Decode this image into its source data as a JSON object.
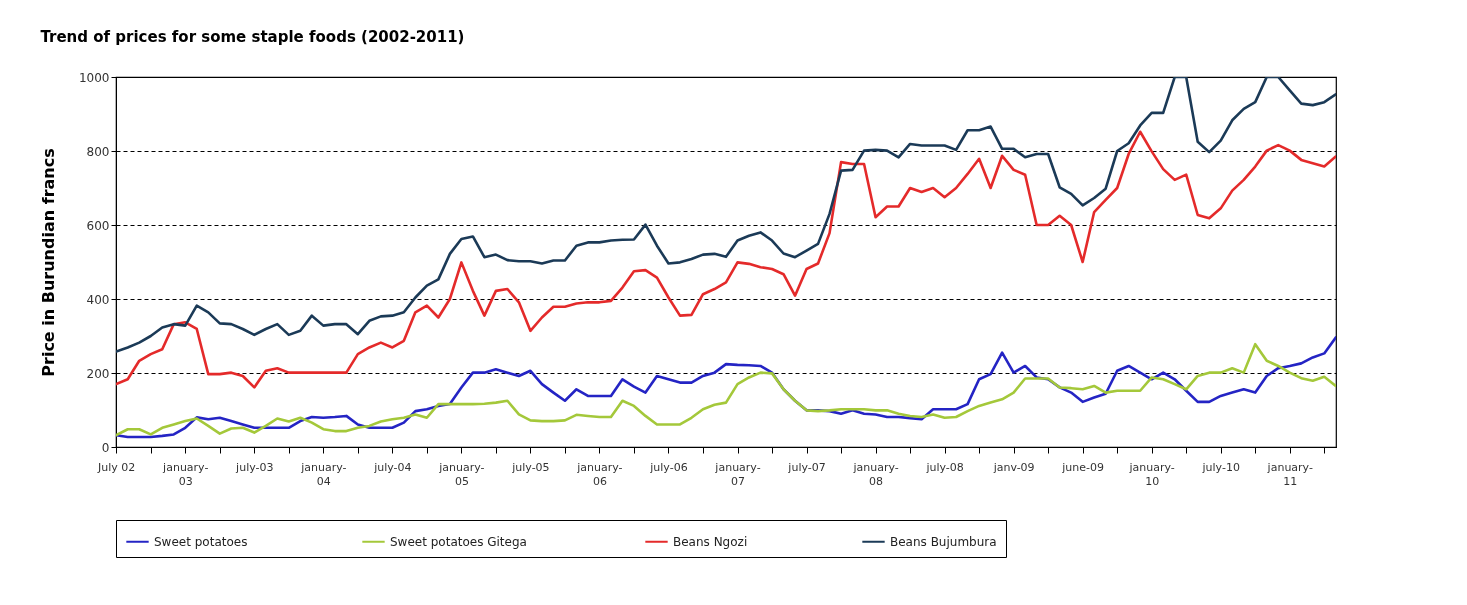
{
  "chart_data": {
    "type": "line",
    "title": "Trend of prices for some staple foods (2002-2011)",
    "ylabel": "Price in Burundian francs",
    "categories": [
      "July 02",
      null,
      null,
      null,
      null,
      null,
      "january-03",
      null,
      null,
      null,
      null,
      null,
      "july-03",
      null,
      null,
      null,
      null,
      null,
      "january-04",
      null,
      null,
      null,
      null,
      null,
      "july-04",
      null,
      null,
      null,
      null,
      null,
      "january-05",
      null,
      null,
      null,
      null,
      null,
      "july-05",
      null,
      null,
      null,
      null,
      null,
      "january-06",
      null,
      null,
      null,
      null,
      null,
      "july-06",
      null,
      null,
      null,
      null,
      null,
      "january-07",
      null,
      null,
      null,
      null,
      null,
      "july-07",
      null,
      null,
      null,
      null,
      null,
      "january-08",
      null,
      null,
      null,
      null,
      null,
      "july-08",
      null,
      null,
      null,
      null,
      null,
      "janv-09",
      null,
      null,
      null,
      null,
      null,
      "june-09",
      null,
      null,
      null,
      null,
      null,
      "january-10",
      null,
      null,
      null,
      null,
      null,
      "july-10",
      null,
      null,
      null,
      null,
      null,
      "january-11",
      null,
      null,
      null,
      null
    ],
    "series": [
      {
        "name": "Sweet potatoes",
        "color": "#2424c4",
        "values": [
          32,
          27,
          27,
          27,
          30,
          34,
          52,
          80,
          75,
          79,
          70,
          61,
          52,
          52,
          52,
          52,
          70,
          81,
          79,
          81,
          84,
          61,
          52,
          52,
          52,
          66,
          97,
          102,
          111,
          116,
          161,
          201,
          201,
          210,
          201,
          192,
          206,
          170,
          147,
          125,
          156,
          138,
          138,
          138,
          183,
          163,
          147,
          192,
          183,
          174,
          174,
          192,
          201,
          224,
          222,
          221,
          219,
          201,
          156,
          125,
          99,
          99,
          97,
          90,
          99,
          90,
          88,
          81,
          81,
          78,
          75,
          102,
          102,
          102,
          116,
          183,
          197,
          255,
          201,
          219,
          188,
          183,
          161,
          147,
          122,
          134,
          144,
          206,
          219,
          201,
          183,
          201,
          183,
          152,
          122,
          122,
          138,
          147,
          156,
          147,
          192,
          213,
          219,
          226,
          242,
          253,
          296
        ]
      },
      {
        "name": "Sweet potatoes  Gitega",
        "color": "#a4c83a",
        "values": [
          32,
          48,
          48,
          34,
          52,
          61,
          70,
          77,
          57,
          36,
          50,
          52,
          39,
          57,
          77,
          69,
          79,
          66,
          48,
          43,
          43,
          52,
          57,
          69,
          75,
          79,
          88,
          79,
          116,
          116,
          116,
          116,
          117,
          120,
          125,
          88,
          72,
          70,
          70,
          72,
          87,
          84,
          81,
          81,
          125,
          111,
          84,
          61,
          61,
          61,
          79,
          102,
          114,
          120,
          170,
          188,
          201,
          199,
          156,
          125,
          99,
          97,
          99,
          102,
          102,
          102,
          99,
          99,
          90,
          84,
          81,
          88,
          79,
          81,
          97,
          111,
          120,
          129,
          147,
          185,
          185,
          185,
          161,
          159,
          156,
          165,
          147,
          152,
          152,
          152,
          188,
          183,
          170,
          156,
          192,
          201,
          201,
          213,
          201,
          278,
          233,
          219,
          201,
          186,
          179,
          190,
          165
        ]
      },
      {
        "name": "Beans Ngozi",
        "color": "#e42a2a",
        "values": [
          170,
          183,
          233,
          251,
          264,
          332,
          337,
          319,
          197,
          197,
          201,
          192,
          161,
          206,
          213,
          201,
          201,
          201,
          201,
          201,
          201,
          251,
          269,
          282,
          269,
          287,
          364,
          382,
          350,
          400,
          499,
          422,
          355,
          422,
          427,
          391,
          314,
          350,
          379,
          379,
          388,
          391,
          391,
          395,
          431,
          475,
          478,
          458,
          404,
          355,
          357,
          413,
          427,
          445,
          499,
          495,
          486,
          481,
          467,
          409,
          481,
          496,
          578,
          770,
          765,
          765,
          621,
          650,
          650,
          700,
          689,
          700,
          675,
          700,
          738,
          779,
          700,
          787,
          749,
          736,
          600,
          600,
          625,
          600,
          500,
          635,
          668,
          700,
          792,
          852,
          799,
          751,
          722,
          736,
          627,
          618,
          645,
          693,
          722,
          758,
          801,
          816,
          801,
          776,
          767,
          758,
          785
        ]
      },
      {
        "name": "Beans Bujumbura",
        "color": "#1b3a57",
        "values": [
          258,
          269,
          282,
          300,
          323,
          332,
          328,
          382,
          364,
          334,
          332,
          319,
          303,
          319,
          332,
          303,
          314,
          355,
          328,
          332,
          332,
          305,
          341,
          353,
          355,
          364,
          404,
          436,
          453,
          522,
          562,
          569,
          513,
          520,
          505,
          502,
          502,
          496,
          504,
          504,
          544,
          553,
          553,
          558,
          560,
          561,
          601,
          544,
          496,
          499,
          508,
          520,
          522,
          514,
          558,
          571,
          580,
          558,
          523,
          513,
          531,
          549,
          630,
          747,
          749,
          801,
          803,
          801,
          783,
          819,
          815,
          815,
          815,
          803,
          856,
          856,
          866,
          806,
          806,
          783,
          792,
          792,
          702,
          684,
          653,
          673,
          698,
          800,
          821,
          869,
          903,
          903,
          1000,
          1000,
          825,
          797,
          828,
          883,
          914,
          932,
          1000,
          1000,
          964,
          928,
          924,
          932,
          953
        ]
      }
    ],
    "ylim": [
      0,
      1000
    ],
    "yticks": [
      0,
      200,
      400,
      600,
      800,
      1000
    ],
    "grid": "y",
    "legend": "bottom"
  }
}
